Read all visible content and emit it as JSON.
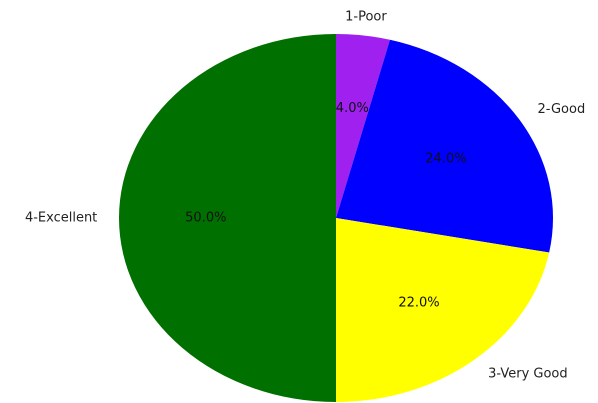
{
  "chart_data": {
    "type": "pie",
    "categories": [
      "1-Poor",
      "2-Good",
      "3-Very Good",
      "4-Excellent"
    ],
    "values": [
      4.0,
      24.0,
      22.0,
      50.0
    ],
    "percent_labels": [
      "4.0%",
      "24.0%",
      "22.0%",
      "50.0%"
    ],
    "colors": [
      "#a020f0",
      "#0000ff",
      "#ffff00",
      "#007000"
    ],
    "start": "top",
    "direction": "clockwise",
    "title": ""
  }
}
